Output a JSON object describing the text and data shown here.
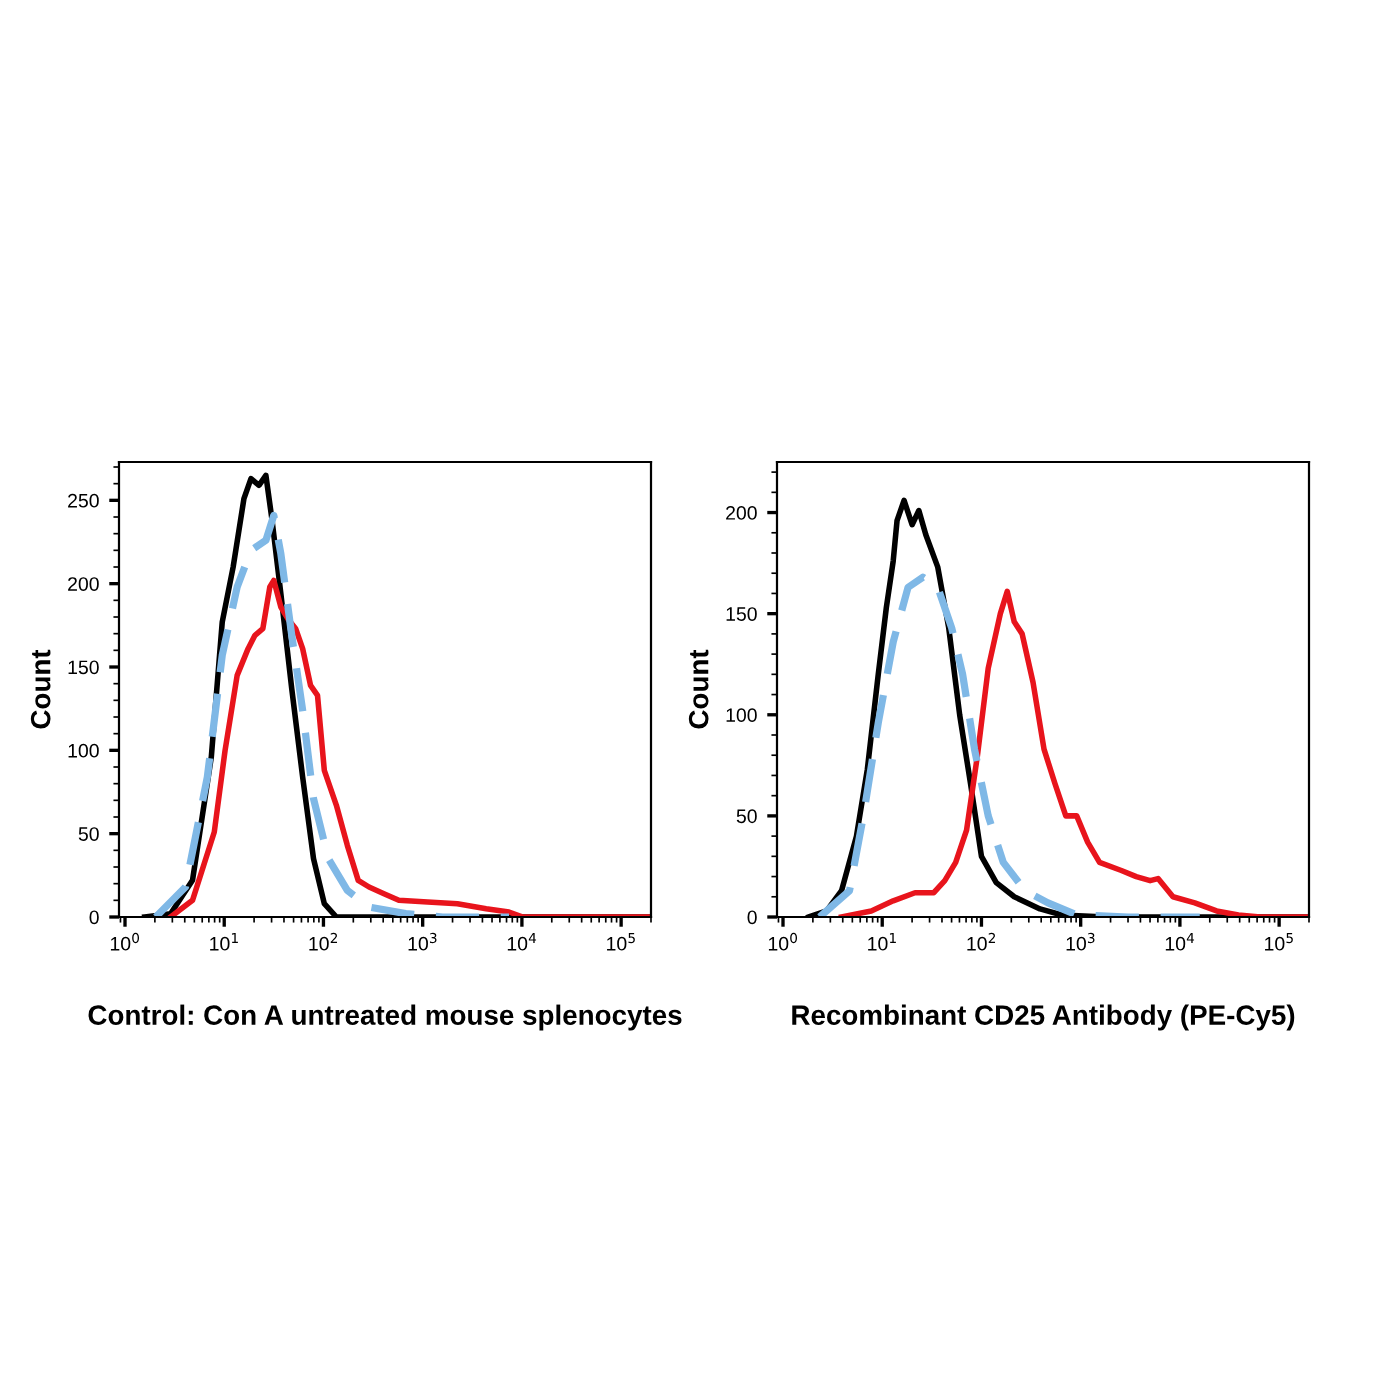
{
  "chart_data": [
    {
      "type": "line",
      "xlabel": "Control: Con A untreated mouse splenocytes",
      "ylabel": "Count",
      "log": "x",
      "grid": false,
      "legend": false,
      "xlim": [
        0.87,
        200000
      ],
      "ylim": [
        0,
        273
      ],
      "yticks": [
        0,
        50,
        100,
        150,
        200,
        250
      ],
      "xticks": [
        {
          "value": 1,
          "label": "10$^{0}$"
        },
        {
          "value": 10,
          "label": "10$^{1}$"
        },
        {
          "value": 100,
          "label": "10$^{2}$"
        },
        {
          "value": 1000,
          "label": "10$^{3}$"
        },
        {
          "value": 10000,
          "label": "10$^{4}$"
        },
        {
          "value": 100000,
          "label": "10$^{5}$"
        }
      ],
      "series": [
        {
          "color": "#000000",
          "line_style": "solid",
          "x": [
            1.58,
            2.88,
            4.79,
            7.41,
            9.55,
            12.3,
            15.8,
            18.6,
            22.4,
            26.3,
            30.2,
            37.2,
            47.9,
            61.7,
            79.4,
            102,
            135,
            200000
          ],
          "values": [
            0,
            2,
            22,
            96,
            177,
            210,
            251,
            263,
            259,
            265,
            239,
            194,
            137,
            84,
            35,
            8,
            0,
            0
          ]
        },
        {
          "color": "#e8141c",
          "line_style": "solid",
          "x": [
            2.88,
            4.79,
            7.94,
            10.2,
            13.5,
            17.4,
            20.4,
            24.5,
            28.8,
            31.6,
            37.2,
            43.7,
            52.5,
            61.7,
            74.1,
            87.1,
            102,
            135,
            174,
            224,
            288,
            407,
            575,
            1122,
            2239,
            4365,
            7413,
            10230,
            200000
          ],
          "values": [
            0,
            10,
            51,
            100,
            145,
            161,
            169,
            173,
            198,
            202,
            186,
            179,
            173,
            161,
            139,
            133,
            88,
            67,
            43,
            22,
            18,
            14,
            10,
            9,
            8,
            5,
            3,
            0,
            0
          ]
        },
        {
          "color": "#7fb8e6",
          "line_style": "dashed",
          "x": [
            2.04,
            4.07,
            6.76,
            9.55,
            13.5,
            18.6,
            26.3,
            31.6,
            37.2,
            47.9,
            61.7,
            79.4,
            112,
            174,
            288,
            676,
            1585,
            7413
          ],
          "values": [
            0,
            18,
            84,
            157,
            198,
            220,
            226,
            241,
            218,
            169,
            124,
            71,
            35,
            16,
            6,
            2,
            0,
            0
          ]
        }
      ]
    },
    {
      "type": "line",
      "xlabel": "Recombinant CD25 Antibody (PE-Cy5)",
      "ylabel": "Count",
      "log": "x",
      "grid": false,
      "legend": false,
      "xlim": [
        0.87,
        200000
      ],
      "ylim": [
        0,
        225
      ],
      "yticks": [
        0,
        50,
        100,
        150,
        200
      ],
      "xticks": [
        {
          "value": 1,
          "label": "10$^{0}$"
        },
        {
          "value": 10,
          "label": "10$^{1}$"
        },
        {
          "value": 100,
          "label": "10$^{2}$"
        },
        {
          "value": 1000,
          "label": "10$^{3}$"
        },
        {
          "value": 10000,
          "label": "10$^{4}$"
        },
        {
          "value": 100000,
          "label": "10$^{5}$"
        }
      ],
      "series": [
        {
          "color": "#000000",
          "line_style": "solid",
          "x": [
            1.82,
            2.75,
            3.89,
            5.5,
            7.08,
            9.12,
            11.0,
            12.9,
            14.1,
            16.6,
            20.0,
            23.4,
            27.5,
            36.3,
            46.8,
            60.3,
            77.6,
            100,
            141,
            214,
            389,
            646,
            1820,
            200000
          ],
          "values": [
            0,
            3,
            13,
            40,
            73,
            120,
            153,
            176,
            196,
            206,
            194,
            201,
            189,
            173,
            143,
            100,
            66,
            30,
            17,
            10,
            4,
            1,
            0,
            0
          ]
        },
        {
          "color": "#e8141c",
          "line_style": "solid",
          "x": [
            3.89,
            7.76,
            12.9,
            21.4,
            33.1,
            42.7,
            55.0,
            70.8,
            91.2,
            117,
            155,
            182,
            214,
            257,
            331,
            427,
            550,
            708,
            912,
            1175,
            1549,
            2570,
            3631,
            5012,
            6026,
            8511,
            14125,
            23442,
            38905,
            64565,
            200000
          ],
          "values": [
            0,
            3,
            8,
            12,
            12,
            18,
            27,
            43,
            80,
            123,
            150,
            161,
            146,
            140,
            116,
            83,
            66,
            50,
            50,
            37,
            27,
            23,
            20,
            18,
            19,
            10,
            7,
            3,
            1,
            0,
            0
          ]
        },
        {
          "color": "#7fb8e6",
          "line_style": "dashed",
          "x": [
            2.34,
            4.68,
            6.46,
            9.12,
            12.9,
            18.2,
            25.7,
            36.3,
            50.1,
            64.6,
            85.1,
            117,
            166,
            275,
            468,
            912,
            3020,
            15849
          ],
          "values": [
            0,
            13,
            50,
            96,
            136,
            163,
            168,
            163,
            143,
            120,
            83,
            50,
            27,
            13,
            7,
            1,
            0,
            0
          ]
        }
      ]
    }
  ]
}
